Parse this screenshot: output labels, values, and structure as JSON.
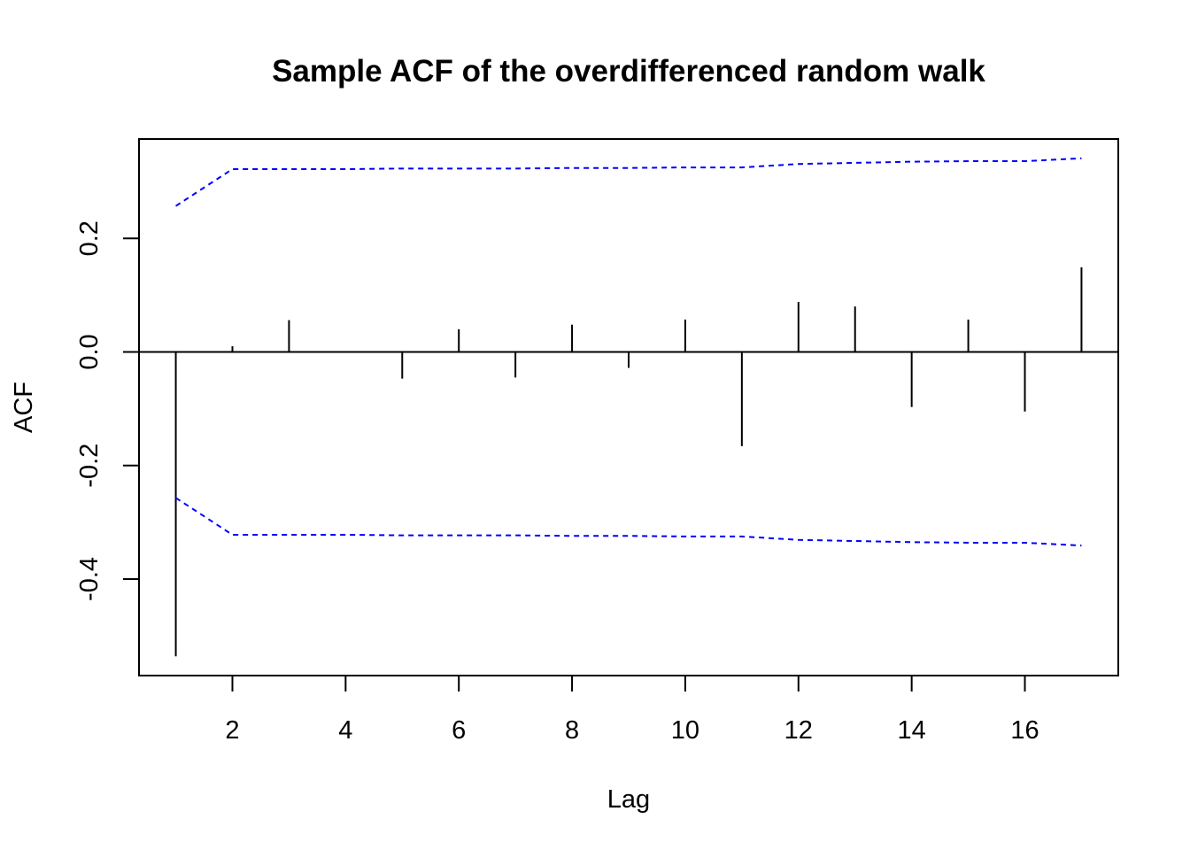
{
  "chart_data": {
    "type": "bar",
    "title": "Sample ACF of the overdifferenced random walk",
    "xlabel": "Lag",
    "ylabel": "ACF",
    "xlim": [
      0.35,
      17.65
    ],
    "ylim": [
      -0.57,
      0.375
    ],
    "x_ticks": [
      2,
      4,
      6,
      8,
      10,
      12,
      14,
      16
    ],
    "y_ticks": [
      -0.4,
      -0.2,
      0.0,
      0.2
    ],
    "x_tick_labels": [
      "2",
      "4",
      "6",
      "8",
      "10",
      "12",
      "14",
      "16"
    ],
    "y_tick_labels": [
      "-0.4",
      "-0.2",
      "0.0",
      "0.2"
    ],
    "lags": [
      1,
      2,
      3,
      4,
      5,
      6,
      7,
      8,
      9,
      10,
      11,
      12,
      13,
      14,
      15,
      16,
      17
    ],
    "acf": [
      -0.536,
      0.01,
      0.056,
      0.0,
      -0.047,
      0.04,
      -0.045,
      0.048,
      -0.028,
      0.057,
      -0.166,
      0.088,
      0.08,
      -0.097,
      0.057,
      -0.105,
      0.149
    ],
    "confidence_upper": [
      0.257,
      0.322,
      0.322,
      0.322,
      0.323,
      0.323,
      0.323,
      0.324,
      0.324,
      0.325,
      0.325,
      0.331,
      0.333,
      0.335,
      0.336,
      0.336,
      0.341
    ],
    "confidence_lower": [
      -0.257,
      -0.322,
      -0.322,
      -0.322,
      -0.323,
      -0.323,
      -0.323,
      -0.324,
      -0.324,
      -0.325,
      -0.325,
      -0.331,
      -0.333,
      -0.335,
      -0.336,
      -0.336,
      -0.341
    ],
    "grid": false,
    "colors": {
      "bars": "#000000",
      "confidence_band": "#0000ff",
      "zero_line": "#000000",
      "frame": "#000000"
    }
  }
}
